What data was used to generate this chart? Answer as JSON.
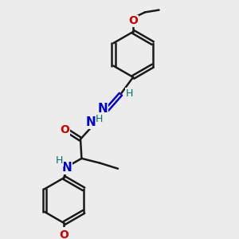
{
  "background_color": "#ececec",
  "bond_color": "#1a1a1a",
  "nitrogen_color": "#0000cc",
  "oxygen_color": "#cc0000",
  "hydrogen_color": "#007070",
  "bond_width": 1.8,
  "figsize": [
    3.0,
    3.0
  ],
  "dpi": 100,
  "xlim": [
    0,
    10
  ],
  "ylim": [
    0,
    10
  ]
}
